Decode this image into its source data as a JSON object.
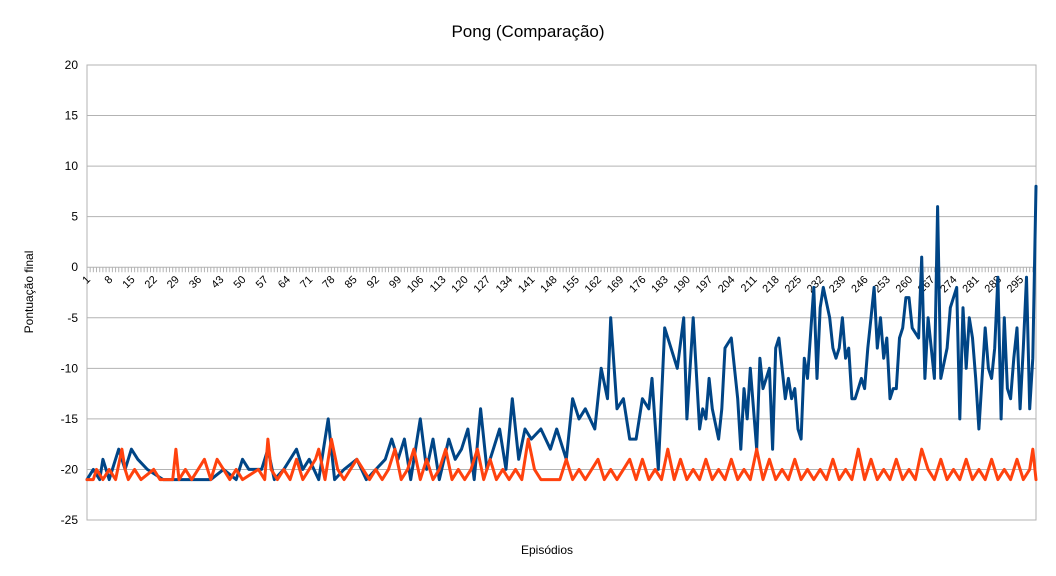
{
  "chart_data": {
    "type": "line",
    "title": "Pong (Comparação)",
    "xlabel": "Episódios",
    "ylabel": "Pontuação final",
    "ylim": [
      -25,
      20
    ],
    "yticks": [
      20,
      15,
      10,
      5,
      0,
      -5,
      -10,
      -15,
      -20,
      -25
    ],
    "xticks": [
      1,
      8,
      15,
      22,
      29,
      36,
      43,
      50,
      57,
      64,
      71,
      78,
      85,
      92,
      99,
      106,
      113,
      120,
      127,
      134,
      141,
      148,
      155,
      162,
      169,
      176,
      183,
      190,
      197,
      204,
      211,
      218,
      225,
      232,
      239,
      246,
      253,
      260,
      267,
      274,
      281,
      288,
      295
    ],
    "xlim": [
      1,
      300
    ],
    "grid": "horizontal",
    "legend": "none",
    "series": [
      {
        "color": "#004586",
        "points": [
          [
            1,
            -21
          ],
          [
            3,
            -20
          ],
          [
            5,
            -21
          ],
          [
            6,
            -19
          ],
          [
            8,
            -21
          ],
          [
            11,
            -18
          ],
          [
            13,
            -20
          ],
          [
            15,
            -18
          ],
          [
            17,
            -19
          ],
          [
            20,
            -20
          ],
          [
            25,
            -21
          ],
          [
            40,
            -21
          ],
          [
            44,
            -20
          ],
          [
            48,
            -21
          ],
          [
            50,
            -19
          ],
          [
            52,
            -20
          ],
          [
            56,
            -20
          ],
          [
            58,
            -18
          ],
          [
            60,
            -21
          ],
          [
            63,
            -20
          ],
          [
            67,
            -18
          ],
          [
            69,
            -20
          ],
          [
            71,
            -19
          ],
          [
            74,
            -21
          ],
          [
            77,
            -15
          ],
          [
            79,
            -21
          ],
          [
            82,
            -20
          ],
          [
            86,
            -19
          ],
          [
            89,
            -21
          ],
          [
            95,
            -19
          ],
          [
            97,
            -17
          ],
          [
            99,
            -19
          ],
          [
            101,
            -17
          ],
          [
            103,
            -21
          ],
          [
            106,
            -15
          ],
          [
            108,
            -20
          ],
          [
            110,
            -17
          ],
          [
            112,
            -21
          ],
          [
            115,
            -17
          ],
          [
            117,
            -19
          ],
          [
            119,
            -18
          ],
          [
            121,
            -16
          ],
          [
            123,
            -21
          ],
          [
            125,
            -14
          ],
          [
            127,
            -20
          ],
          [
            129,
            -18
          ],
          [
            131,
            -16
          ],
          [
            133,
            -20
          ],
          [
            135,
            -13
          ],
          [
            137,
            -19
          ],
          [
            139,
            -16
          ],
          [
            141,
            -17
          ],
          [
            144,
            -16
          ],
          [
            147,
            -18
          ],
          [
            149,
            -16
          ],
          [
            152,
            -19
          ],
          [
            154,
            -13
          ],
          [
            156,
            -15
          ],
          [
            158,
            -14
          ],
          [
            161,
            -16
          ],
          [
            163,
            -10
          ],
          [
            165,
            -13
          ],
          [
            166,
            -5
          ],
          [
            168,
            -14
          ],
          [
            170,
            -13
          ],
          [
            172,
            -17
          ],
          [
            174,
            -17
          ],
          [
            176,
            -13
          ],
          [
            178,
            -14
          ],
          [
            179,
            -11
          ],
          [
            181,
            -20
          ],
          [
            183,
            -6
          ],
          [
            185,
            -8
          ],
          [
            187,
            -10
          ],
          [
            189,
            -5
          ],
          [
            190,
            -15
          ],
          [
            192,
            -5
          ],
          [
            194,
            -16
          ],
          [
            195,
            -14
          ],
          [
            196,
            -15
          ],
          [
            197,
            -11
          ],
          [
            198,
            -14
          ],
          [
            200,
            -17
          ],
          [
            201,
            -14
          ],
          [
            202,
            -8
          ],
          [
            204,
            -7
          ],
          [
            206,
            -13
          ],
          [
            207,
            -18
          ],
          [
            208,
            -12
          ],
          [
            209,
            -15
          ],
          [
            210,
            -10
          ],
          [
            212,
            -18
          ],
          [
            213,
            -9
          ],
          [
            214,
            -12
          ],
          [
            216,
            -10
          ],
          [
            217,
            -18
          ],
          [
            218,
            -8
          ],
          [
            219,
            -7
          ],
          [
            221,
            -13
          ],
          [
            222,
            -11
          ],
          [
            223,
            -13
          ],
          [
            224,
            -12
          ],
          [
            225,
            -16
          ],
          [
            226,
            -17
          ],
          [
            227,
            -9
          ],
          [
            228,
            -11
          ],
          [
            230,
            -2
          ],
          [
            231,
            -11
          ],
          [
            232,
            -4
          ],
          [
            233,
            -2
          ],
          [
            235,
            -5
          ],
          [
            236,
            -8
          ],
          [
            237,
            -9
          ],
          [
            238,
            -8
          ],
          [
            239,
            -5
          ],
          [
            240,
            -9
          ],
          [
            241,
            -8
          ],
          [
            242,
            -13
          ],
          [
            243,
            -13
          ],
          [
            244,
            -12
          ],
          [
            245,
            -11
          ],
          [
            246,
            -12
          ],
          [
            247,
            -8
          ],
          [
            248,
            -5
          ],
          [
            249,
            -2
          ],
          [
            250,
            -8
          ],
          [
            251,
            -5
          ],
          [
            252,
            -9
          ],
          [
            253,
            -7
          ],
          [
            254,
            -13
          ],
          [
            255,
            -12
          ],
          [
            256,
            -12
          ],
          [
            257,
            -7
          ],
          [
            258,
            -6
          ],
          [
            259,
            -3
          ],
          [
            260,
            -3
          ],
          [
            261,
            -6
          ],
          [
            263,
            -7
          ],
          [
            264,
            1
          ],
          [
            265,
            -11
          ],
          [
            266,
            -5
          ],
          [
            268,
            -11
          ],
          [
            269,
            6
          ],
          [
            270,
            -11
          ],
          [
            272,
            -8
          ],
          [
            273,
            -4
          ],
          [
            275,
            -2
          ],
          [
            276,
            -15
          ],
          [
            277,
            -4
          ],
          [
            278,
            -10
          ],
          [
            279,
            -5
          ],
          [
            280,
            -7
          ],
          [
            281,
            -11
          ],
          [
            282,
            -16
          ],
          [
            284,
            -6
          ],
          [
            285,
            -10
          ],
          [
            286,
            -11
          ],
          [
            287,
            -8
          ],
          [
            288,
            -1
          ],
          [
            289,
            -15
          ],
          [
            290,
            -5
          ],
          [
            291,
            -12
          ],
          [
            292,
            -13
          ],
          [
            293,
            -9
          ],
          [
            294,
            -6
          ],
          [
            295,
            -14
          ],
          [
            296,
            -8
          ],
          [
            297,
            -1
          ],
          [
            298,
            -14
          ],
          [
            299,
            -9
          ],
          [
            300,
            8
          ]
        ]
      },
      {
        "color": "#ff420e",
        "points": [
          [
            1,
            -21
          ],
          [
            3,
            -21
          ],
          [
            4,
            -20
          ],
          [
            6,
            -21
          ],
          [
            8,
            -20
          ],
          [
            10,
            -21
          ],
          [
            12,
            -18
          ],
          [
            13,
            -20
          ],
          [
            14,
            -21
          ],
          [
            16,
            -20
          ],
          [
            18,
            -21
          ],
          [
            22,
            -20
          ],
          [
            24,
            -21
          ],
          [
            28,
            -21
          ],
          [
            29,
            -18
          ],
          [
            30,
            -21
          ],
          [
            32,
            -20
          ],
          [
            34,
            -21
          ],
          [
            36,
            -20
          ],
          [
            38,
            -19
          ],
          [
            40,
            -21
          ],
          [
            42,
            -19
          ],
          [
            44,
            -20
          ],
          [
            46,
            -21
          ],
          [
            48,
            -20
          ],
          [
            50,
            -21
          ],
          [
            55,
            -20
          ],
          [
            57,
            -21
          ],
          [
            58,
            -17
          ],
          [
            59,
            -20
          ],
          [
            61,
            -21
          ],
          [
            63,
            -20
          ],
          [
            65,
            -21
          ],
          [
            67,
            -19
          ],
          [
            69,
            -21
          ],
          [
            73,
            -19
          ],
          [
            74,
            -18
          ],
          [
            76,
            -21
          ],
          [
            78,
            -17
          ],
          [
            80,
            -20
          ],
          [
            82,
            -21
          ],
          [
            84,
            -20
          ],
          [
            86,
            -19
          ],
          [
            88,
            -20
          ],
          [
            90,
            -21
          ],
          [
            92,
            -20
          ],
          [
            94,
            -21
          ],
          [
            96,
            -20
          ],
          [
            98,
            -18
          ],
          [
            100,
            -21
          ],
          [
            102,
            -20
          ],
          [
            104,
            -18
          ],
          [
            106,
            -21
          ],
          [
            108,
            -19
          ],
          [
            110,
            -21
          ],
          [
            112,
            -20
          ],
          [
            114,
            -18
          ],
          [
            116,
            -21
          ],
          [
            118,
            -20
          ],
          [
            120,
            -21
          ],
          [
            122,
            -20
          ],
          [
            124,
            -18
          ],
          [
            126,
            -21
          ],
          [
            128,
            -19
          ],
          [
            130,
            -21
          ],
          [
            132,
            -20
          ],
          [
            134,
            -21
          ],
          [
            136,
            -20
          ],
          [
            138,
            -21
          ],
          [
            140,
            -17
          ],
          [
            142,
            -20
          ],
          [
            144,
            -21
          ],
          [
            150,
            -21
          ],
          [
            152,
            -19
          ],
          [
            154,
            -21
          ],
          [
            156,
            -20
          ],
          [
            158,
            -21
          ],
          [
            160,
            -20
          ],
          [
            162,
            -19
          ],
          [
            164,
            -21
          ],
          [
            166,
            -20
          ],
          [
            168,
            -21
          ],
          [
            170,
            -20
          ],
          [
            172,
            -19
          ],
          [
            174,
            -21
          ],
          [
            176,
            -19
          ],
          [
            178,
            -21
          ],
          [
            180,
            -20
          ],
          [
            182,
            -21
          ],
          [
            184,
            -18
          ],
          [
            186,
            -21
          ],
          [
            188,
            -19
          ],
          [
            190,
            -21
          ],
          [
            192,
            -20
          ],
          [
            194,
            -21
          ],
          [
            196,
            -19
          ],
          [
            198,
            -21
          ],
          [
            200,
            -20
          ],
          [
            202,
            -21
          ],
          [
            204,
            -19
          ],
          [
            206,
            -21
          ],
          [
            208,
            -20
          ],
          [
            210,
            -21
          ],
          [
            212,
            -18
          ],
          [
            214,
            -21
          ],
          [
            216,
            -19
          ],
          [
            218,
            -21
          ],
          [
            220,
            -20
          ],
          [
            222,
            -21
          ],
          [
            224,
            -19
          ],
          [
            226,
            -21
          ],
          [
            228,
            -20
          ],
          [
            230,
            -21
          ],
          [
            232,
            -20
          ],
          [
            234,
            -21
          ],
          [
            236,
            -19
          ],
          [
            238,
            -21
          ],
          [
            240,
            -20
          ],
          [
            242,
            -21
          ],
          [
            244,
            -18
          ],
          [
            246,
            -21
          ],
          [
            248,
            -19
          ],
          [
            250,
            -21
          ],
          [
            252,
            -20
          ],
          [
            254,
            -21
          ],
          [
            256,
            -19
          ],
          [
            258,
            -21
          ],
          [
            260,
            -20
          ],
          [
            262,
            -21
          ],
          [
            264,
            -18
          ],
          [
            266,
            -20
          ],
          [
            268,
            -21
          ],
          [
            270,
            -19
          ],
          [
            272,
            -21
          ],
          [
            274,
            -20
          ],
          [
            276,
            -21
          ],
          [
            278,
            -19
          ],
          [
            280,
            -21
          ],
          [
            282,
            -20
          ],
          [
            284,
            -21
          ],
          [
            286,
            -19
          ],
          [
            288,
            -21
          ],
          [
            290,
            -20
          ],
          [
            292,
            -21
          ],
          [
            294,
            -19
          ],
          [
            296,
            -21
          ],
          [
            298,
            -20
          ],
          [
            299,
            -18
          ],
          [
            300,
            -21
          ]
        ]
      }
    ]
  }
}
